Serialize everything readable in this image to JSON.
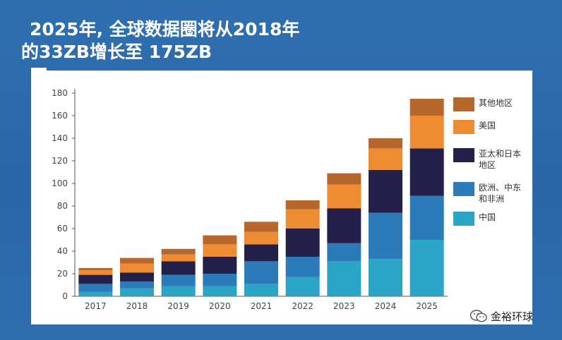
{
  "title": {
    "line1": "2025年, 全球数据圈将从2018年",
    "line2": "的33ZB增长至 175ZB"
  },
  "watermark": {
    "text": "金裕环球",
    "icon": "wechat-icon"
  },
  "colors": {
    "background": "#2c69ab",
    "china": "#2aa5c6",
    "emea": "#2b7ab9",
    "apj": "#23204a",
    "usa": "#ef8c31",
    "other": "#b8672c",
    "axis": "#555555"
  },
  "chart_data": {
    "type": "bar",
    "stacked": true,
    "categories": [
      "2017",
      "2018",
      "2019",
      "2020",
      "2021",
      "2022",
      "2023",
      "2024",
      "2025"
    ],
    "ylim": [
      0,
      180
    ],
    "yticks": [
      0,
      20,
      40,
      60,
      80,
      100,
      120,
      140,
      160,
      180
    ],
    "grid": false,
    "legend_position": "right",
    "series": [
      {
        "name": "中国",
        "values": [
          4,
          7,
          9,
          9,
          11,
          17,
          31,
          33,
          50
        ]
      },
      {
        "name": "欧洲、中东和非洲",
        "values": [
          7,
          6,
          10,
          11,
          20,
          18,
          16,
          41,
          39
        ]
      },
      {
        "name": "亚太和日本地区",
        "values": [
          8,
          8,
          12,
          15,
          15,
          25,
          31,
          38,
          42
        ]
      },
      {
        "name": "美国",
        "values": [
          4,
          8,
          6,
          11,
          11,
          17,
          21,
          19,
          29
        ]
      },
      {
        "name": "其他地区",
        "values": [
          2,
          5,
          5,
          8,
          9,
          8,
          10,
          9,
          15
        ]
      }
    ],
    "legend_order": [
      "其他地区",
      "美国",
      "亚太和日本地区",
      "欧洲、中东和非洲",
      "中国"
    ],
    "legend_labels": {
      "其他地区": "其他地区",
      "美国": "美国",
      "亚太和日本地区": "亚太和日本地区",
      "欧洲、中东和非洲": "欧洲、中东和非洲",
      "中国": "中国"
    }
  }
}
